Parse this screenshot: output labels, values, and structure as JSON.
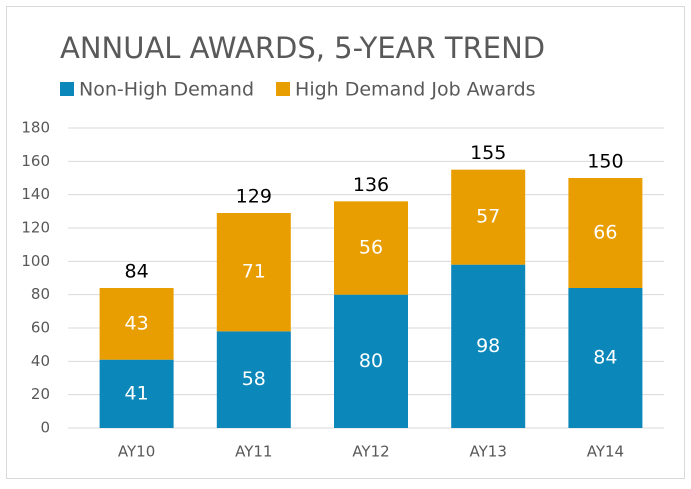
{
  "chart_data": {
    "type": "stacked_bar",
    "title": "ANNUAL AWARDS, 5-YEAR TREND",
    "categories": [
      "AY10",
      "AY11",
      "AY12",
      "AY13",
      "AY14"
    ],
    "series": [
      {
        "name": "Non-High Demand",
        "color": "#0b87ba",
        "values": [
          41,
          58,
          80,
          98,
          84
        ]
      },
      {
        "name": "High Demand Job Awards",
        "color": "#e89d00",
        "values": [
          43,
          71,
          56,
          57,
          66
        ]
      }
    ],
    "totals": [
      84,
      129,
      136,
      155,
      150
    ],
    "ylim": [
      0,
      180
    ],
    "yticks": [
      0,
      20,
      40,
      60,
      80,
      100,
      120,
      140,
      160,
      180
    ],
    "grid": true
  }
}
